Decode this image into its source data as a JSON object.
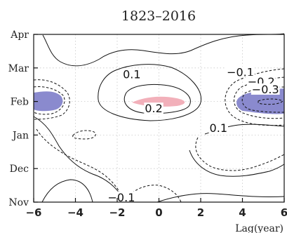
{
  "chart_data": {
    "type": "contour",
    "title": "1823–2016",
    "xlabel": "Lag(year)",
    "ylabel": "",
    "xlim": [
      -6,
      6
    ],
    "ylim": [
      0,
      5
    ],
    "x_ticks": [
      -6,
      -4,
      -2,
      0,
      2,
      4,
      6
    ],
    "x_tick_labels": [
      "−6",
      "−4",
      "−2",
      "0",
      "2",
      "4",
      "6"
    ],
    "y_ticks": [
      0,
      1,
      2,
      3,
      4,
      5
    ],
    "y_tick_labels": [
      "Nov",
      "Dec",
      "Jan",
      "Feb",
      "Mar",
      "Apr"
    ],
    "grid": "dotted",
    "contour_labels": [
      {
        "text": "0.1",
        "x": -1.3,
        "y": 3.82
      },
      {
        "text": "−0.1",
        "x": 3.9,
        "y": 3.88
      },
      {
        "text": "−0.2",
        "x": 4.9,
        "y": 3.6
      },
      {
        "text": "−0.3",
        "x": 5.1,
        "y": 3.37
      },
      {
        "text": "0.2",
        "x": -0.25,
        "y": 2.8
      },
      {
        "text": "0.1",
        "x": 2.85,
        "y": 2.22
      },
      {
        "text": "−0.1",
        "x": -1.8,
        "y": 0.15
      }
    ],
    "shading": {
      "positive_color": "#f4b4bd",
      "negative_color": "#8888cc"
    }
  }
}
